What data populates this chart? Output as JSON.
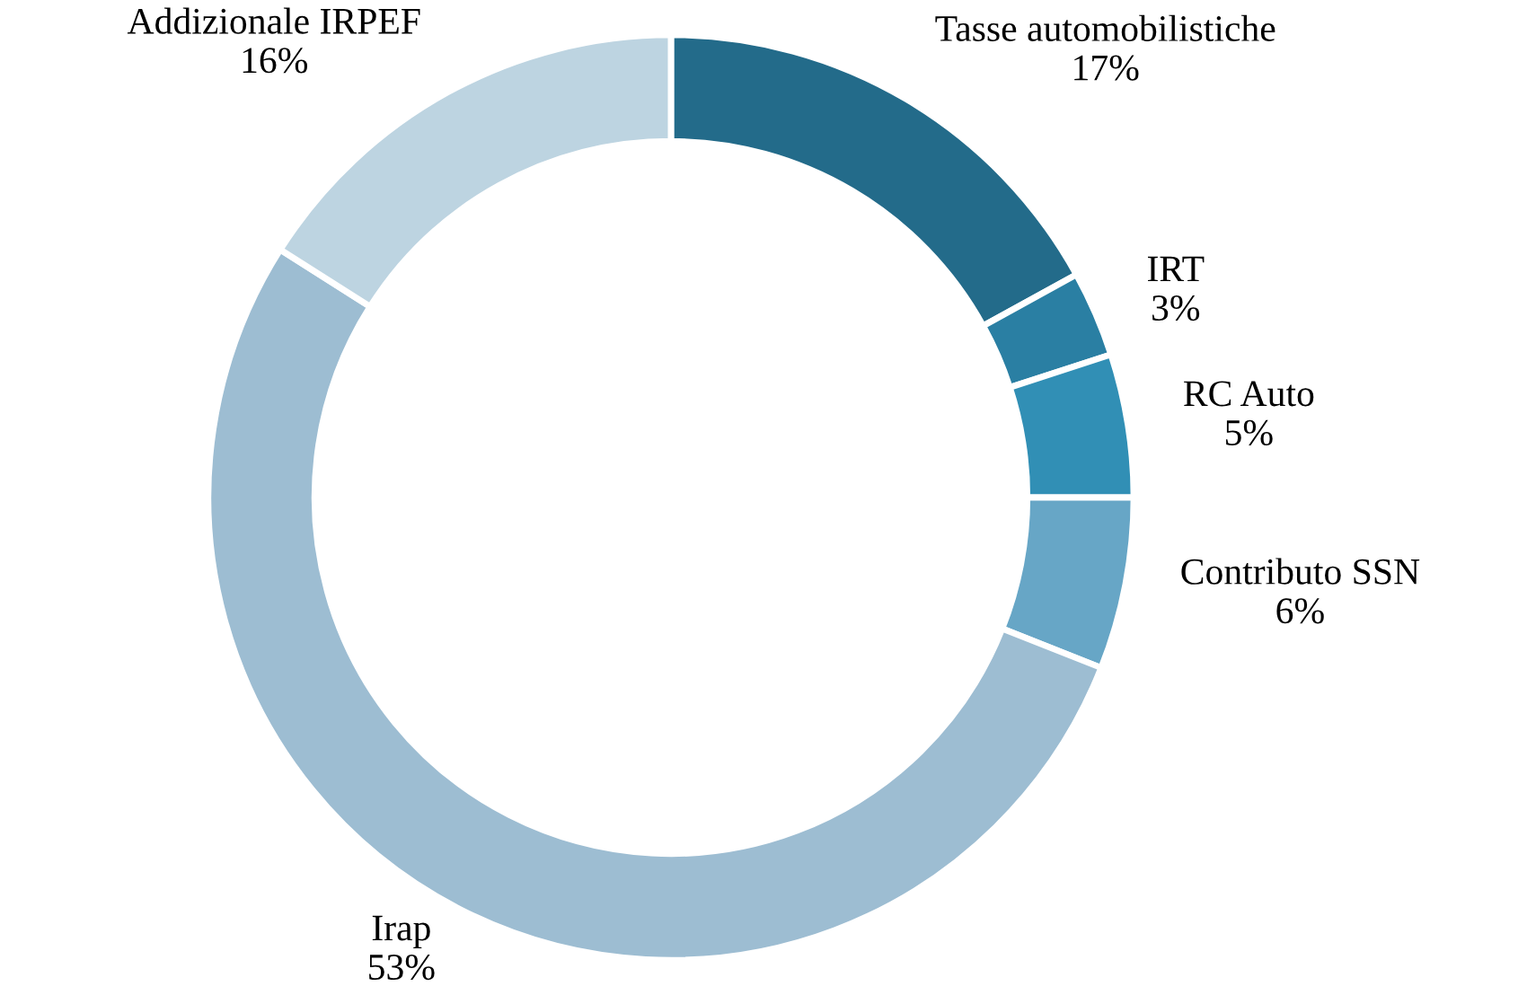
{
  "chart_data": {
    "type": "donut",
    "categories": [
      "Tasse automobilistiche",
      "IRT",
      "RC Auto",
      "Contributo SSN",
      "Irap",
      "Addizionale IRPEF"
    ],
    "values": [
      17,
      3,
      5,
      6,
      53,
      16
    ],
    "colors": [
      "#236b8a",
      "#2a7fa3",
      "#318fb5",
      "#67a6c6",
      "#9dbdd2",
      "#bdd4e1"
    ],
    "value_labels": [
      "17%",
      "3%",
      "5%",
      "6%",
      "53%",
      "16%"
    ]
  }
}
